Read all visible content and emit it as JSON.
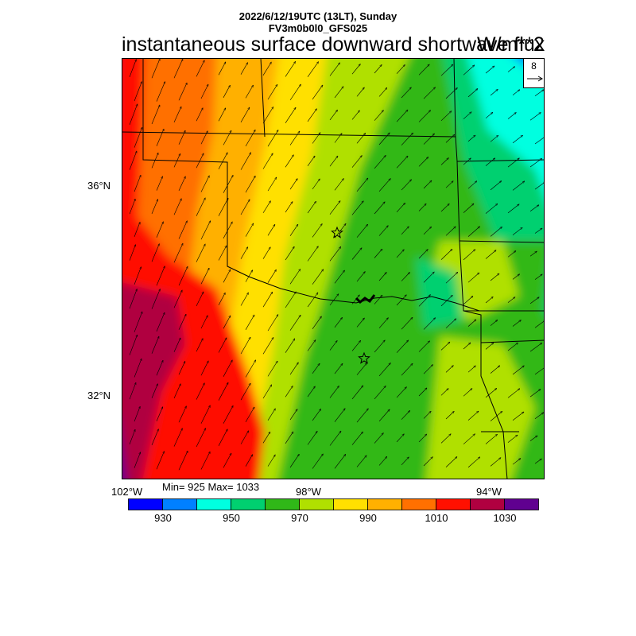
{
  "header": {
    "line1": "2022/6/12/19UTC (13LT), Sunday",
    "line2": "FV3m0b0l0_GFS025"
  },
  "title": "instantaneous surface downward shortwave flux",
  "units": "W/m**2",
  "stats": "Min= 925 Max= 1033",
  "axes": {
    "lat_labels": [
      "36°N",
      "32°N"
    ],
    "lon_labels": [
      "102°W",
      "98°W",
      "94°W"
    ]
  },
  "reference_vector": {
    "label": "8"
  },
  "colorbar": {
    "colors": [
      "#0000ff",
      "#0080ff",
      "#00ffe0",
      "#00d070",
      "#30b818",
      "#b0e000",
      "#ffe000",
      "#ffb000",
      "#ff7000",
      "#ff1000",
      "#b00040",
      "#600090"
    ],
    "labels": [
      "930",
      "950",
      "970",
      "990",
      "1010",
      "1030"
    ]
  },
  "map_data": {
    "field_range": [
      925,
      1033
    ],
    "markers": [
      "star",
      "star"
    ]
  }
}
